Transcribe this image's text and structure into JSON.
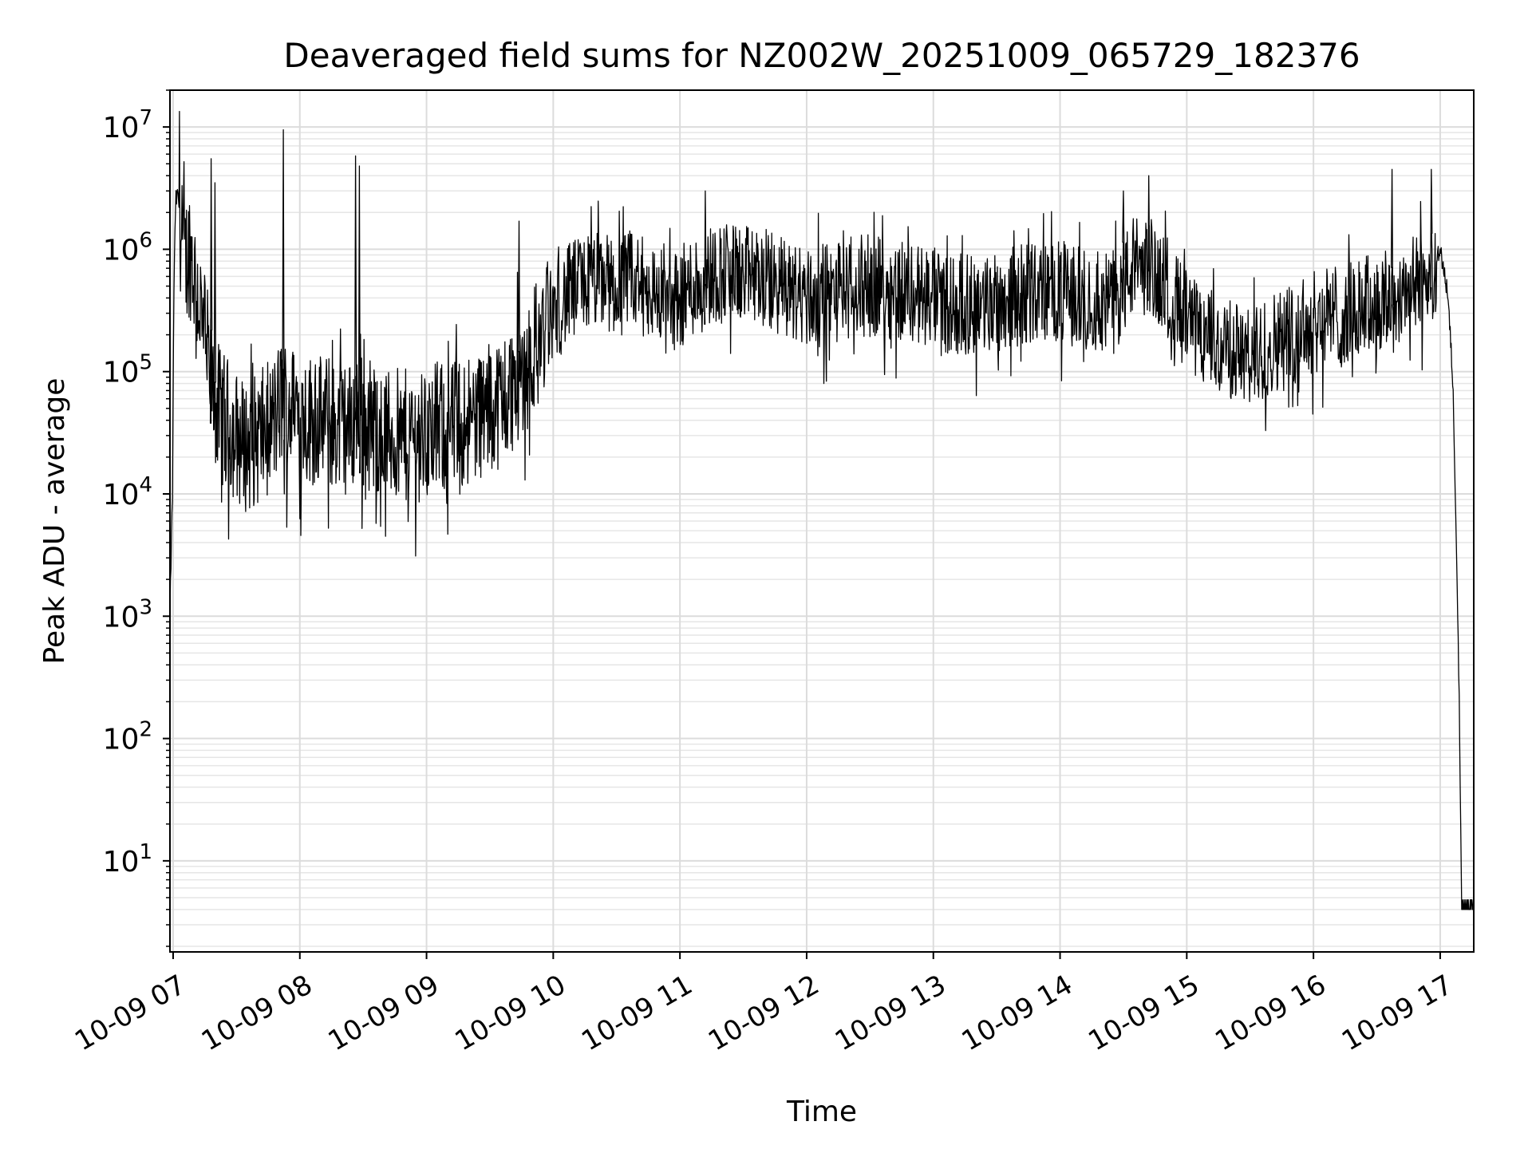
{
  "chart_data": {
    "type": "line",
    "title": "Deaveraged field sums for NZ002W_20251009_065729_182376",
    "xlabel": "Time",
    "ylabel": "Peak ADU - average",
    "yscale": "log",
    "ylim": [
      1.8,
      20000000
    ],
    "xlim_hours": [
      6.975,
      17.265
    ],
    "grid": true,
    "grid_minor": true,
    "line_color": "#000000",
    "xticks": [
      {
        "hour": 7,
        "label": "10-09 07"
      },
      {
        "hour": 8,
        "label": "10-09 08"
      },
      {
        "hour": 9,
        "label": "10-09 09"
      },
      {
        "hour": 10,
        "label": "10-09 10"
      },
      {
        "hour": 11,
        "label": "10-09 11"
      },
      {
        "hour": 12,
        "label": "10-09 12"
      },
      {
        "hour": 13,
        "label": "10-09 13"
      },
      {
        "hour": 14,
        "label": "10-09 14"
      },
      {
        "hour": 15,
        "label": "10-09 15"
      },
      {
        "hour": 16,
        "label": "10-09 16"
      },
      {
        "hour": 17,
        "label": "10-09 17"
      }
    ],
    "yticks": [
      {
        "value": 10,
        "base": "10",
        "exp": "1"
      },
      {
        "value": 100,
        "base": "10",
        "exp": "2"
      },
      {
        "value": 1000,
        "base": "10",
        "exp": "3"
      },
      {
        "value": 10000,
        "base": "10",
        "exp": "4"
      },
      {
        "value": 100000,
        "base": "10",
        "exp": "5"
      },
      {
        "value": 1000000,
        "base": "10",
        "exp": "6"
      },
      {
        "value": 10000000,
        "base": "10",
        "exp": "7"
      }
    ],
    "series": [
      {
        "name": "Deaveraged field sum",
        "x_hours": [
          6.975,
          6.985,
          6.995,
          7.005,
          7.02,
          7.04,
          7.06,
          7.08,
          7.1,
          7.13,
          7.16,
          7.2,
          7.25,
          7.3,
          7.35,
          7.4,
          7.45,
          7.5,
          7.55,
          7.6,
          7.7,
          7.8,
          7.86,
          7.9,
          8.0,
          8.1,
          8.2,
          8.3,
          8.4,
          8.45,
          8.5,
          8.6,
          8.7,
          8.8,
          8.9,
          9.0,
          9.1,
          9.2,
          9.3,
          9.4,
          9.5,
          9.6,
          9.7,
          9.8,
          9.9,
          10.0,
          10.1,
          10.2,
          10.3,
          10.4,
          10.5,
          10.6,
          10.7,
          10.8,
          10.9,
          11.0,
          11.1,
          11.2,
          11.3,
          11.4,
          11.5,
          11.6,
          11.7,
          11.8,
          11.9,
          12.0,
          12.2,
          12.4,
          12.6,
          12.8,
          13.0,
          13.2,
          13.4,
          13.6,
          13.8,
          14.0,
          14.2,
          14.4,
          14.5,
          14.6,
          14.7,
          14.8,
          14.9,
          15.0,
          15.1,
          15.2,
          15.3,
          15.4,
          15.5,
          15.6,
          15.7,
          15.8,
          15.9,
          16.0,
          16.1,
          16.2,
          16.3,
          16.4,
          16.5,
          16.6,
          16.7,
          16.8,
          16.9,
          16.97,
          17.0,
          17.05,
          17.08,
          17.1,
          17.13,
          17.15,
          17.17,
          17.2,
          17.265
        ],
        "values": [
          1000,
          3600,
          10000,
          400000,
          2500000,
          2800000,
          1500000,
          900000,
          800000,
          1000000,
          700000,
          400000,
          200000,
          80000,
          50000,
          40000,
          35000,
          30000,
          25000,
          25000,
          30000,
          40000,
          60000,
          50000,
          45000,
          40000,
          40000,
          35000,
          35000,
          45000,
          40000,
          35000,
          30000,
          30000,
          30000,
          30000,
          35000,
          35000,
          40000,
          45000,
          50000,
          60000,
          80000,
          120000,
          200000,
          300000,
          400000,
          500000,
          550000,
          550000,
          500000,
          550000,
          500000,
          450000,
          350000,
          400000,
          500000,
          600000,
          650000,
          650000,
          600000,
          600000,
          550000,
          500000,
          450000,
          400000,
          450000,
          500000,
          500000,
          450000,
          400000,
          350000,
          350000,
          400000,
          450000,
          450000,
          400000,
          350000,
          500000,
          800000,
          700000,
          600000,
          400000,
          250000,
          200000,
          180000,
          150000,
          150000,
          120000,
          150000,
          180000,
          200000,
          220000,
          250000,
          280000,
          300000,
          300000,
          350000,
          350000,
          400000,
          450000,
          500000,
          600000,
          800000,
          1000000,
          500000,
          200000,
          80000,
          3000,
          200,
          4,
          4,
          4
        ]
      }
    ],
    "spikes": [
      {
        "hour": 7.3,
        "value": 5500000
      },
      {
        "hour": 7.33,
        "value": 3500000
      },
      {
        "hour": 7.87,
        "value": 9500000
      },
      {
        "hour": 8.44,
        "value": 5800000
      },
      {
        "hour": 8.47,
        "value": 4800000
      },
      {
        "hour": 9.73,
        "value": 1700000
      },
      {
        "hour": 11.2,
        "value": 3000000
      },
      {
        "hour": 14.5,
        "value": 3000000
      },
      {
        "hour": 14.7,
        "value": 4000000
      },
      {
        "hour": 16.62,
        "value": 4500000
      },
      {
        "hour": 16.93,
        "value": 4500000
      }
    ]
  }
}
